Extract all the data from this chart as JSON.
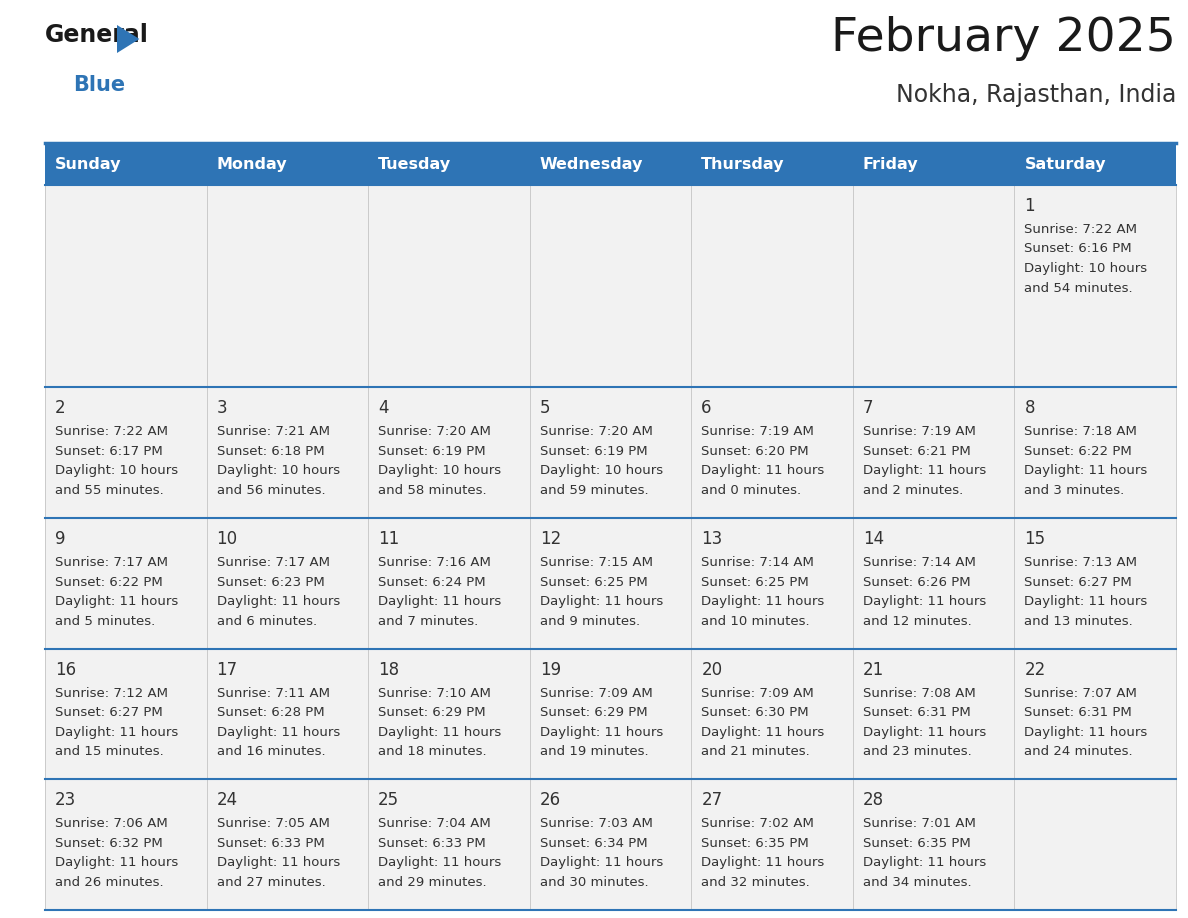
{
  "title": "February 2025",
  "subtitle": "Nokha, Rajasthan, India",
  "header_bg": "#2E74B5",
  "header_text_color": "#FFFFFF",
  "weekdays": [
    "Sunday",
    "Monday",
    "Tuesday",
    "Wednesday",
    "Thursday",
    "Friday",
    "Saturday"
  ],
  "cell_bg": "#F2F2F2",
  "border_color": "#2E74B5",
  "day_text_color": "#333333",
  "info_text_color": "#333333",
  "separator_color": "#2E74B5",
  "calendar_data": [
    [
      null,
      null,
      null,
      null,
      null,
      null,
      {
        "day": 1,
        "sunrise": "7:22 AM",
        "sunset": "6:16 PM",
        "daylight_h": "10 hours",
        "daylight_m": "54 minutes."
      }
    ],
    [
      {
        "day": 2,
        "sunrise": "7:22 AM",
        "sunset": "6:17 PM",
        "daylight_h": "10 hours",
        "daylight_m": "55 minutes."
      },
      {
        "day": 3,
        "sunrise": "7:21 AM",
        "sunset": "6:18 PM",
        "daylight_h": "10 hours",
        "daylight_m": "56 minutes."
      },
      {
        "day": 4,
        "sunrise": "7:20 AM",
        "sunset": "6:19 PM",
        "daylight_h": "10 hours",
        "daylight_m": "58 minutes."
      },
      {
        "day": 5,
        "sunrise": "7:20 AM",
        "sunset": "6:19 PM",
        "daylight_h": "10 hours",
        "daylight_m": "59 minutes."
      },
      {
        "day": 6,
        "sunrise": "7:19 AM",
        "sunset": "6:20 PM",
        "daylight_h": "11 hours",
        "daylight_m": "0 minutes."
      },
      {
        "day": 7,
        "sunrise": "7:19 AM",
        "sunset": "6:21 PM",
        "daylight_h": "11 hours",
        "daylight_m": "2 minutes."
      },
      {
        "day": 8,
        "sunrise": "7:18 AM",
        "sunset": "6:22 PM",
        "daylight_h": "11 hours",
        "daylight_m": "3 minutes."
      }
    ],
    [
      {
        "day": 9,
        "sunrise": "7:17 AM",
        "sunset": "6:22 PM",
        "daylight_h": "11 hours",
        "daylight_m": "5 minutes."
      },
      {
        "day": 10,
        "sunrise": "7:17 AM",
        "sunset": "6:23 PM",
        "daylight_h": "11 hours",
        "daylight_m": "6 minutes."
      },
      {
        "day": 11,
        "sunrise": "7:16 AM",
        "sunset": "6:24 PM",
        "daylight_h": "11 hours",
        "daylight_m": "7 minutes."
      },
      {
        "day": 12,
        "sunrise": "7:15 AM",
        "sunset": "6:25 PM",
        "daylight_h": "11 hours",
        "daylight_m": "9 minutes."
      },
      {
        "day": 13,
        "sunrise": "7:14 AM",
        "sunset": "6:25 PM",
        "daylight_h": "11 hours",
        "daylight_m": "10 minutes."
      },
      {
        "day": 14,
        "sunrise": "7:14 AM",
        "sunset": "6:26 PM",
        "daylight_h": "11 hours",
        "daylight_m": "12 minutes."
      },
      {
        "day": 15,
        "sunrise": "7:13 AM",
        "sunset": "6:27 PM",
        "daylight_h": "11 hours",
        "daylight_m": "13 minutes."
      }
    ],
    [
      {
        "day": 16,
        "sunrise": "7:12 AM",
        "sunset": "6:27 PM",
        "daylight_h": "11 hours",
        "daylight_m": "15 minutes."
      },
      {
        "day": 17,
        "sunrise": "7:11 AM",
        "sunset": "6:28 PM",
        "daylight_h": "11 hours",
        "daylight_m": "16 minutes."
      },
      {
        "day": 18,
        "sunrise": "7:10 AM",
        "sunset": "6:29 PM",
        "daylight_h": "11 hours",
        "daylight_m": "18 minutes."
      },
      {
        "day": 19,
        "sunrise": "7:09 AM",
        "sunset": "6:29 PM",
        "daylight_h": "11 hours",
        "daylight_m": "19 minutes."
      },
      {
        "day": 20,
        "sunrise": "7:09 AM",
        "sunset": "6:30 PM",
        "daylight_h": "11 hours",
        "daylight_m": "21 minutes."
      },
      {
        "day": 21,
        "sunrise": "7:08 AM",
        "sunset": "6:31 PM",
        "daylight_h": "11 hours",
        "daylight_m": "23 minutes."
      },
      {
        "day": 22,
        "sunrise": "7:07 AM",
        "sunset": "6:31 PM",
        "daylight_h": "11 hours",
        "daylight_m": "24 minutes."
      }
    ],
    [
      {
        "day": 23,
        "sunrise": "7:06 AM",
        "sunset": "6:32 PM",
        "daylight_h": "11 hours",
        "daylight_m": "26 minutes."
      },
      {
        "day": 24,
        "sunrise": "7:05 AM",
        "sunset": "6:33 PM",
        "daylight_h": "11 hours",
        "daylight_m": "27 minutes."
      },
      {
        "day": 25,
        "sunrise": "7:04 AM",
        "sunset": "6:33 PM",
        "daylight_h": "11 hours",
        "daylight_m": "29 minutes."
      },
      {
        "day": 26,
        "sunrise": "7:03 AM",
        "sunset": "6:34 PM",
        "daylight_h": "11 hours",
        "daylight_m": "30 minutes."
      },
      {
        "day": 27,
        "sunrise": "7:02 AM",
        "sunset": "6:35 PM",
        "daylight_h": "11 hours",
        "daylight_m": "32 minutes."
      },
      {
        "day": 28,
        "sunrise": "7:01 AM",
        "sunset": "6:35 PM",
        "daylight_h": "11 hours",
        "daylight_m": "34 minutes."
      },
      null
    ]
  ],
  "logo_text_general": "General",
  "logo_text_blue": "Blue",
  "fig_width": 11.88,
  "fig_height": 9.18,
  "dpi": 100
}
